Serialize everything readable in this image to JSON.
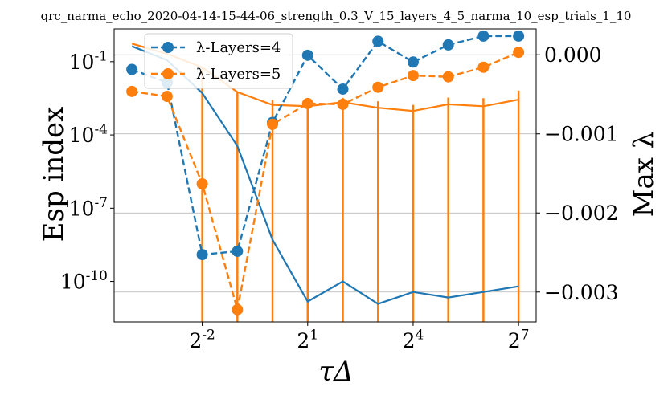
{
  "chart_data": {
    "type": "line",
    "title": "qrc_narma_echo_2020-04-14-15-44-06_strength_0.3_V_15_layers_4_5_narma_10_esp_trials_1_10",
    "xlabel": "τΔ",
    "ylabel_left": "Esp index",
    "ylabel_right": "Max λ",
    "x_scale": "log2",
    "x_ticks": [
      0.25,
      2,
      16,
      128
    ],
    "x_tick_labels": [
      {
        "base": "2",
        "exp": "-2"
      },
      {
        "base": "2",
        "exp": "1"
      },
      {
        "base": "2",
        "exp": "4"
      },
      {
        "base": "2",
        "exp": "7"
      }
    ],
    "x": [
      0.0625,
      0.125,
      0.25,
      0.5,
      1,
      2,
      4,
      8,
      16,
      32,
      64,
      128
    ],
    "xlim": [
      0.044,
      181
    ],
    "y_left_scale": "log10",
    "y_left_ticks": [
      0.1,
      0.0001,
      1e-07,
      1e-10
    ],
    "y_left_tick_labels": [
      {
        "base": "10",
        "exp": "-1"
      },
      {
        "base": "10",
        "exp": "-4"
      },
      {
        "base": "10",
        "exp": "-7"
      },
      {
        "base": "10",
        "exp": "-10"
      }
    ],
    "y_left_lim": [
      2.2e-12,
      2.2
    ],
    "y_right_ticks": [
      0.0,
      -0.001,
      -0.002,
      -0.003
    ],
    "y_right_tick_labels": [
      "0.000",
      "−0.001",
      "−0.002",
      "−0.003"
    ],
    "y_right_lim": [
      -0.003378,
      0.000327
    ],
    "grid": "horizontal",
    "legend_position": "top-left",
    "series": [
      {
        "name": "λ-Layers=4",
        "axis": "right",
        "style": "dashed-markers",
        "color": "#1f77b4",
        "values": [
          -0.000186,
          -0.000352,
          -0.002526,
          -0.002484,
          -0.000856,
          -6.4e-06,
          -0.000434,
          0.000171,
          -9.22e-05,
          0.000125,
          0.000237,
          0.000237
        ]
      },
      {
        "name": "λ-Layers=5",
        "axis": "right",
        "style": "dashed-markers",
        "color": "#ff7f0e",
        "values": [
          -0.000463,
          -0.000526,
          -0.001632,
          -0.003223,
          -0.000879,
          -0.000616,
          -0.000626,
          -0.000411,
          -0.000263,
          -0.000279,
          -0.000158,
          3.05e-05
        ]
      },
      {
        "name": "",
        "axis": "left",
        "style": "solid",
        "color": "#1f77b4",
        "values": [
          0.43,
          0.115,
          0.0052,
          3.5e-05,
          5.1e-09,
          1.5e-11,
          1e-10,
          1.2e-11,
          3.7e-11,
          2.2e-11,
          3.7e-11,
          6.3e-11
        ]
      },
      {
        "name": "",
        "axis": "left",
        "style": "solid-errorbars",
        "color": "#ff7f0e",
        "values": [
          0.55,
          0.21,
          0.058,
          0.0057,
          0.0017,
          0.0015,
          0.0022,
          0.0013,
          0.00096,
          0.0018,
          0.0015,
          0.0028
        ],
        "error_low_clipped": [
          false,
          false,
          true,
          true,
          true,
          true,
          true,
          true,
          true,
          true,
          true,
          true
        ],
        "error_high": [
          null,
          null,
          0.058,
          0.0057,
          0.0027,
          0.0025,
          0.0033,
          0.0024,
          0.0017,
          0.0034,
          0.0032,
          0.0066
        ]
      }
    ]
  }
}
